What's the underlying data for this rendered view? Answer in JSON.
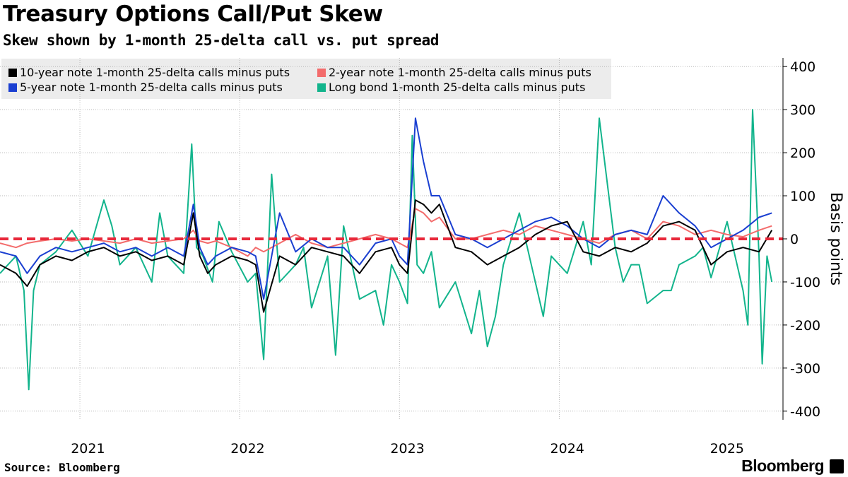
{
  "header": {
    "title": "Treasury Options Call/Put Skew",
    "subtitle": "Skew shown by 1-month 25-delta call vs. put spread"
  },
  "footer": {
    "source": "Source: Bloomberg",
    "brand": "Bloomberg"
  },
  "chart_data": {
    "type": "line",
    "ylabel": "Basis points",
    "ylim": [
      -420,
      420
    ],
    "yticks": [
      400,
      300,
      200,
      100,
      0,
      -100,
      -200,
      -300,
      -400
    ],
    "ytick_labels": [
      "400",
      "300",
      "200",
      "100",
      "0",
      "-100",
      "-200",
      "-300",
      "-400"
    ],
    "xlim": [
      2020.45,
      2025.35
    ],
    "xticks": [
      2021,
      2022,
      2023,
      2024,
      2025
    ],
    "xtick_labels": [
      "2021",
      "2022",
      "2023",
      "2024",
      "2025"
    ],
    "x_divisions": [
      2020.95,
      2021.95,
      2022.95,
      2023.95
    ],
    "grid": true,
    "legend_position": "top-left",
    "reference_line": {
      "y": 0,
      "color": "#e8283a",
      "style": "dashed"
    },
    "series": [
      {
        "name": "10-year note 1-month 25-delta calls minus puts",
        "color": "#000000",
        "x": [
          2020.45,
          2020.55,
          2020.62,
          2020.7,
          2020.8,
          2020.9,
          2021.0,
          2021.1,
          2021.2,
          2021.3,
          2021.4,
          2021.5,
          2021.6,
          2021.66,
          2021.7,
          2021.75,
          2021.8,
          2021.9,
          2022.0,
          2022.05,
          2022.1,
          2022.2,
          2022.3,
          2022.4,
          2022.5,
          2022.6,
          2022.7,
          2022.8,
          2022.9,
          2022.95,
          2023.0,
          2023.05,
          2023.1,
          2023.15,
          2023.2,
          2023.3,
          2023.4,
          2023.5,
          2023.6,
          2023.7,
          2023.8,
          2023.9,
          2024.0,
          2024.1,
          2024.2,
          2024.3,
          2024.4,
          2024.5,
          2024.6,
          2024.7,
          2024.8,
          2024.9,
          2025.0,
          2025.1,
          2025.2,
          2025.28
        ],
        "y": [
          -60,
          -80,
          -110,
          -60,
          -40,
          -50,
          -30,
          -20,
          -40,
          -30,
          -50,
          -40,
          -60,
          60,
          -40,
          -80,
          -60,
          -40,
          -50,
          -60,
          -170,
          -40,
          -60,
          -20,
          -30,
          -40,
          -80,
          -30,
          -20,
          -60,
          -80,
          90,
          80,
          60,
          80,
          -20,
          -30,
          -60,
          -40,
          -20,
          10,
          30,
          40,
          -30,
          -40,
          -20,
          -30,
          -10,
          30,
          40,
          20,
          -60,
          -30,
          -20,
          -30,
          20
        ]
      },
      {
        "name": "2-year note 1-month 25-delta calls minus puts",
        "color": "#f36c6c",
        "x": [
          2020.45,
          2020.55,
          2020.62,
          2020.7,
          2020.8,
          2020.9,
          2021.0,
          2021.1,
          2021.2,
          2021.3,
          2021.4,
          2021.5,
          2021.6,
          2021.66,
          2021.7,
          2021.75,
          2021.8,
          2021.9,
          2022.0,
          2022.05,
          2022.1,
          2022.2,
          2022.3,
          2022.4,
          2022.5,
          2022.6,
          2022.7,
          2022.8,
          2022.9,
          2022.95,
          2023.0,
          2023.05,
          2023.1,
          2023.15,
          2023.2,
          2023.3,
          2023.4,
          2023.5,
          2023.6,
          2023.7,
          2023.8,
          2023.9,
          2024.0,
          2024.1,
          2024.2,
          2024.3,
          2024.4,
          2024.5,
          2024.6,
          2024.7,
          2024.8,
          2024.9,
          2025.0,
          2025.1,
          2025.2,
          2025.28
        ],
        "y": [
          -10,
          -20,
          -10,
          -5,
          0,
          -5,
          0,
          -5,
          -10,
          0,
          -10,
          -5,
          0,
          20,
          -5,
          -10,
          -5,
          -20,
          -40,
          -20,
          -30,
          -10,
          10,
          -10,
          -20,
          -10,
          0,
          10,
          0,
          -10,
          -20,
          70,
          60,
          40,
          50,
          0,
          0,
          10,
          20,
          10,
          30,
          20,
          10,
          0,
          -10,
          10,
          20,
          0,
          40,
          30,
          10,
          20,
          10,
          5,
          20,
          30
        ]
      },
      {
        "name": "5-year note 1-month 25-delta calls minus puts",
        "color": "#1a3fd1",
        "x": [
          2020.45,
          2020.55,
          2020.62,
          2020.7,
          2020.8,
          2020.9,
          2021.0,
          2021.1,
          2021.2,
          2021.3,
          2021.4,
          2021.5,
          2021.6,
          2021.66,
          2021.7,
          2021.75,
          2021.8,
          2021.9,
          2022.0,
          2022.05,
          2022.1,
          2022.2,
          2022.3,
          2022.4,
          2022.5,
          2022.6,
          2022.7,
          2022.8,
          2022.9,
          2022.95,
          2023.0,
          2023.05,
          2023.1,
          2023.15,
          2023.2,
          2023.3,
          2023.4,
          2023.5,
          2023.6,
          2023.7,
          2023.8,
          2023.9,
          2024.0,
          2024.1,
          2024.2,
          2024.3,
          2024.4,
          2024.5,
          2024.6,
          2024.7,
          2024.8,
          2024.9,
          2025.0,
          2025.1,
          2025.2,
          2025.28
        ],
        "y": [
          -30,
          -40,
          -80,
          -40,
          -20,
          -30,
          -20,
          -10,
          -30,
          -20,
          -40,
          -20,
          -40,
          80,
          -20,
          -60,
          -40,
          -20,
          -30,
          -40,
          -140,
          60,
          -30,
          0,
          -20,
          -20,
          -60,
          -10,
          0,
          -40,
          -60,
          280,
          180,
          100,
          100,
          10,
          0,
          -20,
          0,
          20,
          40,
          50,
          30,
          0,
          -20,
          10,
          20,
          10,
          100,
          60,
          30,
          -20,
          0,
          20,
          50,
          60
        ]
      },
      {
        "name": "Long bond 1-month 25-delta calls minus puts",
        "color": "#12b48c",
        "x": [
          2020.45,
          2020.5,
          2020.55,
          2020.6,
          2020.63,
          2020.66,
          2020.7,
          2020.8,
          2020.9,
          2021.0,
          2021.1,
          2021.15,
          2021.2,
          2021.3,
          2021.4,
          2021.45,
          2021.5,
          2021.6,
          2021.65,
          2021.68,
          2021.72,
          2021.78,
          2021.82,
          2021.9,
          2022.0,
          2022.05,
          2022.1,
          2022.15,
          2022.2,
          2022.3,
          2022.35,
          2022.4,
          2022.5,
          2022.55,
          2022.6,
          2022.7,
          2022.8,
          2022.85,
          2022.9,
          2022.95,
          2023.0,
          2023.03,
          2023.06,
          2023.1,
          2023.15,
          2023.2,
          2023.3,
          2023.4,
          2023.45,
          2023.5,
          2023.55,
          2023.6,
          2023.7,
          2023.8,
          2023.85,
          2023.9,
          2024.0,
          2024.05,
          2024.1,
          2024.15,
          2024.2,
          2024.3,
          2024.35,
          2024.4,
          2024.45,
          2024.5,
          2024.6,
          2024.65,
          2024.7,
          2024.8,
          2024.85,
          2024.9,
          2025.0,
          2025.05,
          2025.1,
          2025.13,
          2025.16,
          2025.2,
          2025.22,
          2025.25,
          2025.28
        ],
        "y": [
          -80,
          -60,
          -40,
          -120,
          -350,
          -120,
          -60,
          -30,
          20,
          -40,
          90,
          30,
          -60,
          -20,
          -100,
          60,
          -40,
          -80,
          220,
          -20,
          -40,
          -100,
          40,
          -30,
          -100,
          -80,
          -280,
          150,
          -100,
          -60,
          -20,
          -160,
          -40,
          -270,
          30,
          -140,
          -120,
          -200,
          -60,
          -100,
          -150,
          240,
          -60,
          -80,
          -30,
          -160,
          -100,
          -220,
          -120,
          -250,
          -180,
          -60,
          60,
          -100,
          -180,
          -40,
          -80,
          -20,
          40,
          -60,
          280,
          -20,
          -100,
          -60,
          -60,
          -150,
          -120,
          -120,
          -60,
          -40,
          -20,
          -90,
          40,
          -40,
          -120,
          -200,
          300,
          -40,
          -290,
          -40,
          -100
        ]
      }
    ]
  }
}
